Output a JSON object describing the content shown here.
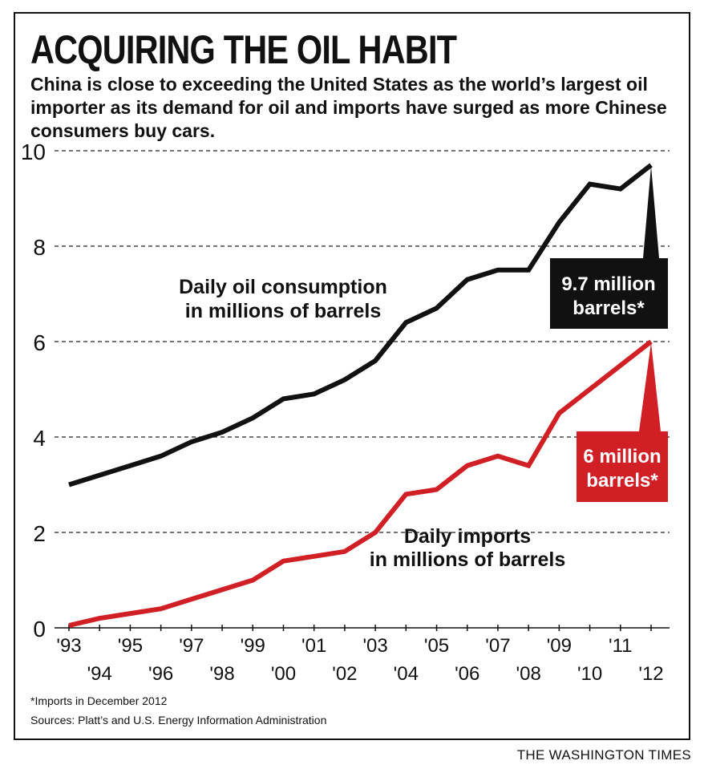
{
  "header": {
    "title": "ACQUIRING THE OIL HABIT",
    "subtitle": "China is close to exceeding the United States as the world’s largest oil importer as its demand for oil and imports have surged as more Chinese consumers buy cars."
  },
  "chart_data": {
    "type": "line",
    "x": [
      "'93",
      "'94",
      "'95",
      "'96",
      "'97",
      "'98",
      "'99",
      "'00",
      "'01",
      "'02",
      "'03",
      "'04",
      "'05",
      "'06",
      "'07",
      "'08",
      "'09",
      "'10",
      "'11",
      "'12"
    ],
    "ylim": [
      0,
      10
    ],
    "yticks": [
      0,
      2,
      4,
      6,
      8,
      10
    ],
    "grid": "dashed horizontal",
    "series": [
      {
        "name": "Daily oil consumption in millions of barrels",
        "color": "#111111",
        "values": [
          3.0,
          3.2,
          3.4,
          3.6,
          3.9,
          4.1,
          4.4,
          4.8,
          4.9,
          5.2,
          5.6,
          6.4,
          6.7,
          7.3,
          7.5,
          7.5,
          8.5,
          9.3,
          9.2,
          9.7
        ]
      },
      {
        "name": "Daily imports in millions of barrels",
        "color": "#d01f25",
        "values": [
          0.05,
          0.2,
          0.3,
          0.4,
          0.6,
          0.8,
          1.0,
          1.4,
          1.5,
          1.6,
          2.0,
          2.8,
          2.9,
          3.4,
          3.6,
          3.4,
          4.5,
          5.0,
          5.5,
          6.0
        ]
      }
    ],
    "annotations": [
      {
        "line1": "9.7 million",
        "line2": "barrels*",
        "color": "#111111"
      },
      {
        "line1": "6 million",
        "line2": "barrels*",
        "color": "#d01f25"
      }
    ],
    "label_consumption": {
      "line1": "Daily oil consumption",
      "line2": "in millions of barrels"
    },
    "label_imports": {
      "line1": "Daily imports",
      "line2": "in millions of barrels"
    }
  },
  "footer": {
    "footnote": "*Imports in December 2012",
    "sources": "Sources: Platt’s and U.S. Energy Information Administration",
    "credit": "THE WASHINGTON TIMES"
  }
}
